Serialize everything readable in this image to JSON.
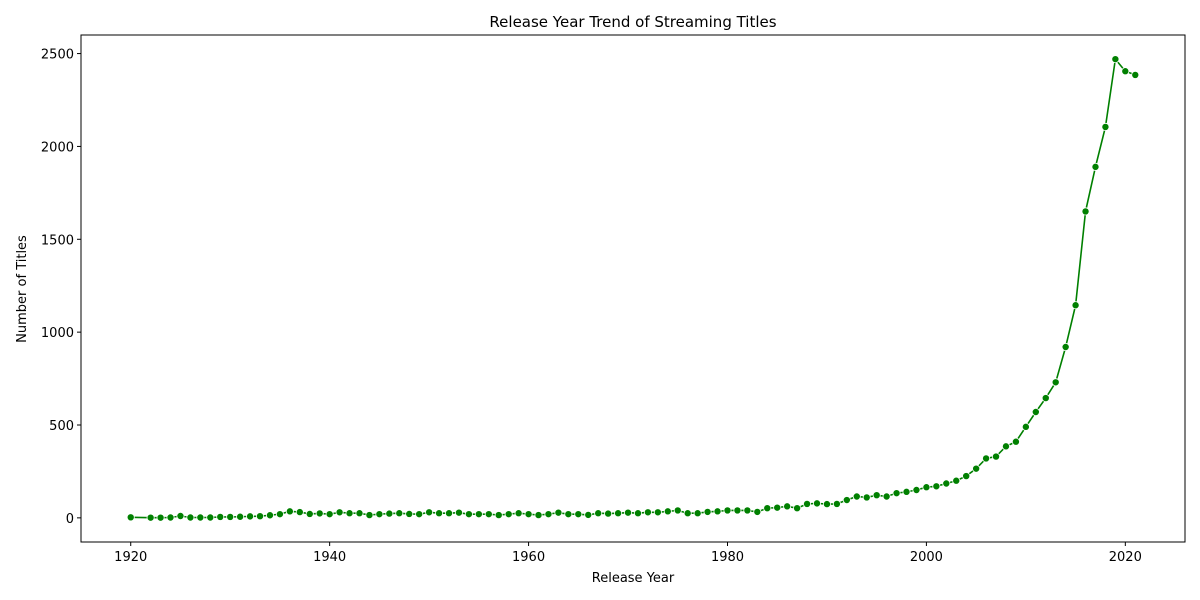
{
  "chart_data": {
    "type": "line",
    "title": "Release Year Trend of Streaming Titles",
    "xlabel": "Release Year",
    "ylabel": "Number of Titles",
    "xlim": [
      1915,
      2026
    ],
    "ylim": [
      -130,
      2600
    ],
    "xticks": [
      1920,
      1940,
      1960,
      1980,
      2000,
      2020
    ],
    "yticks": [
      0,
      500,
      1000,
      1500,
      2000,
      2500
    ],
    "grid": false,
    "legend": "none",
    "color": "#008000",
    "marker": "circle",
    "x": [
      1920,
      1922,
      1923,
      1924,
      1925,
      1926,
      1927,
      1928,
      1929,
      1930,
      1931,
      1932,
      1933,
      1934,
      1935,
      1936,
      1937,
      1938,
      1939,
      1940,
      1941,
      1942,
      1943,
      1944,
      1945,
      1946,
      1947,
      1948,
      1949,
      1950,
      1951,
      1952,
      1953,
      1954,
      1955,
      1956,
      1957,
      1958,
      1959,
      1960,
      1961,
      1962,
      1963,
      1964,
      1965,
      1966,
      1967,
      1968,
      1969,
      1970,
      1971,
      1972,
      1973,
      1974,
      1975,
      1976,
      1977,
      1978,
      1979,
      1980,
      1981,
      1982,
      1983,
      1984,
      1985,
      1986,
      1987,
      1988,
      1989,
      1990,
      1991,
      1992,
      1993,
      1994,
      1995,
      1996,
      1997,
      1998,
      1999,
      2000,
      2001,
      2002,
      2003,
      2004,
      2005,
      2006,
      2007,
      2008,
      2009,
      2010,
      2011,
      2012,
      2013,
      2014,
      2015,
      2016,
      2017,
      2018,
      2019,
      2020,
      2021
    ],
    "y": [
      3,
      1,
      1,
      2,
      10,
      2,
      2,
      2,
      5,
      5,
      6,
      8,
      9,
      14,
      20,
      35,
      31,
      21,
      24,
      20,
      30,
      25,
      25,
      15,
      20,
      23,
      25,
      21,
      20,
      30,
      25,
      25,
      28,
      20,
      20,
      20,
      15,
      20,
      25,
      20,
      15,
      20,
      28,
      20,
      20,
      16,
      25,
      23,
      25,
      28,
      25,
      30,
      30,
      35,
      40,
      25,
      25,
      32,
      35,
      40,
      40,
      40,
      32,
      52,
      55,
      62,
      52,
      75,
      78,
      74,
      75,
      96,
      115,
      110,
      122,
      115,
      133,
      140,
      150,
      165,
      170,
      185,
      200,
      225,
      265,
      320,
      330,
      385,
      410,
      490,
      570,
      645,
      730,
      920,
      1145,
      1650,
      1890,
      2105,
      2470,
      2405,
      2385
    ]
  }
}
